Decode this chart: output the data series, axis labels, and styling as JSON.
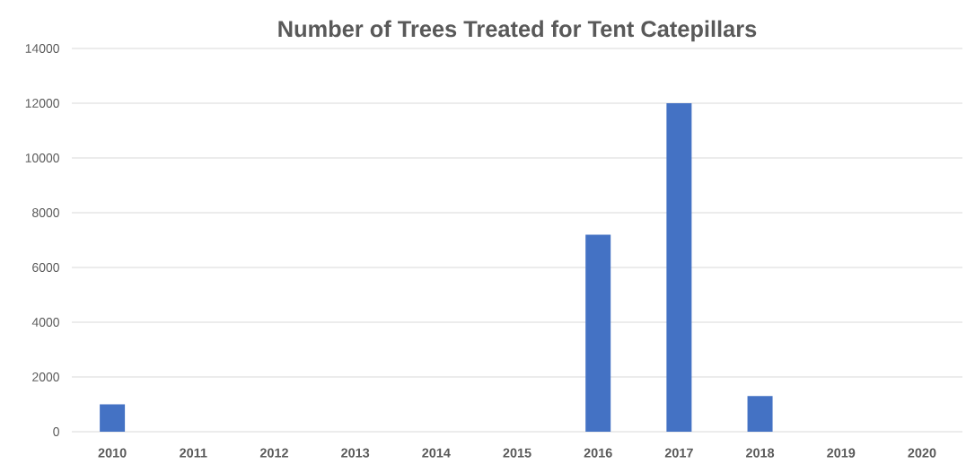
{
  "chart_data": {
    "type": "bar",
    "title": "Number of Trees Treated for Tent Catepillars",
    "categories": [
      "2010",
      "2011",
      "2012",
      "2013",
      "2014",
      "2015",
      "2016",
      "2017",
      "2018",
      "2019",
      "2020"
    ],
    "values": [
      1000,
      null,
      null,
      null,
      null,
      null,
      7200,
      12000,
      1300,
      null,
      null
    ],
    "color": "#4472c4",
    "ylim": [
      0,
      14000
    ],
    "yticks": [
      0,
      2000,
      4000,
      6000,
      8000,
      10000,
      12000,
      14000
    ],
    "grid": "y"
  }
}
